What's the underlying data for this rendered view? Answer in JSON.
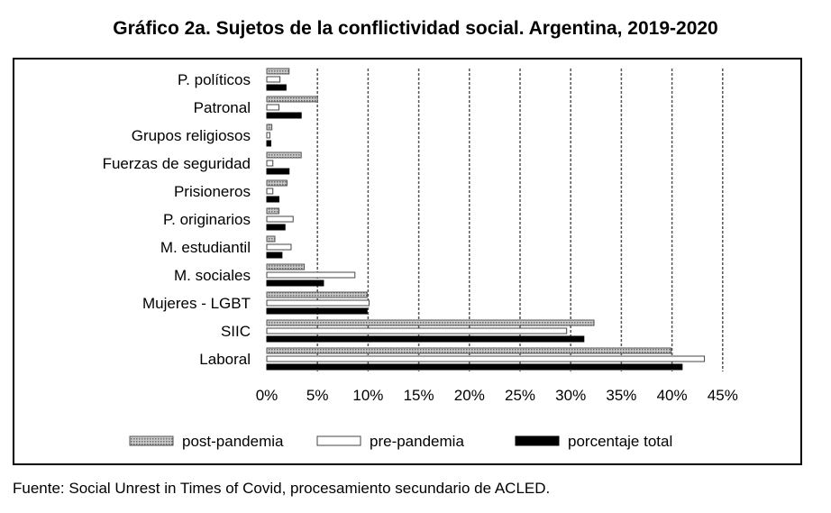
{
  "chart_data": {
    "type": "bar",
    "orientation": "horizontal",
    "title": "Gráfico 2a. Sujetos de la conflictividad social. Argentina, 2019-2020",
    "source": "Fuente: Social Unrest in Times of Covid, procesamiento secundario de ACLED.",
    "categories": [
      "P. políticos",
      "Patronal",
      "Grupos religiosos",
      "Fuerzas de seguridad",
      "Prisioneros",
      "P. originarios",
      "M. estudiantil",
      "M. sociales",
      "Mujeres - LGBT",
      "SIIC",
      "Laboral"
    ],
    "series": [
      {
        "name": "post-pandemia",
        "values": [
          2.2,
          5.0,
          0.5,
          3.4,
          2.0,
          1.2,
          0.8,
          3.7,
          9.9,
          32.3,
          39.9
        ]
      },
      {
        "name": "pre-pandemia",
        "values": [
          1.3,
          1.2,
          0.3,
          0.6,
          0.6,
          2.6,
          2.4,
          8.7,
          10.1,
          29.6,
          43.2
        ]
      },
      {
        "name": "porcentaje total",
        "values": [
          1.9,
          3.4,
          0.4,
          2.2,
          1.2,
          1.8,
          1.5,
          5.6,
          9.9,
          31.3,
          41.0
        ]
      }
    ],
    "xlim": [
      0,
      45
    ],
    "xticks": [
      "0%",
      "5%",
      "10%",
      "15%",
      "20%",
      "25%",
      "30%",
      "35%",
      "40%",
      "45%"
    ],
    "grid": true,
    "legend_position": "bottom",
    "colors": {
      "post-pandemia": "#a6a6a6",
      "pre-pandemia": "#ffffff",
      "porcentaje total": "#000000"
    }
  }
}
